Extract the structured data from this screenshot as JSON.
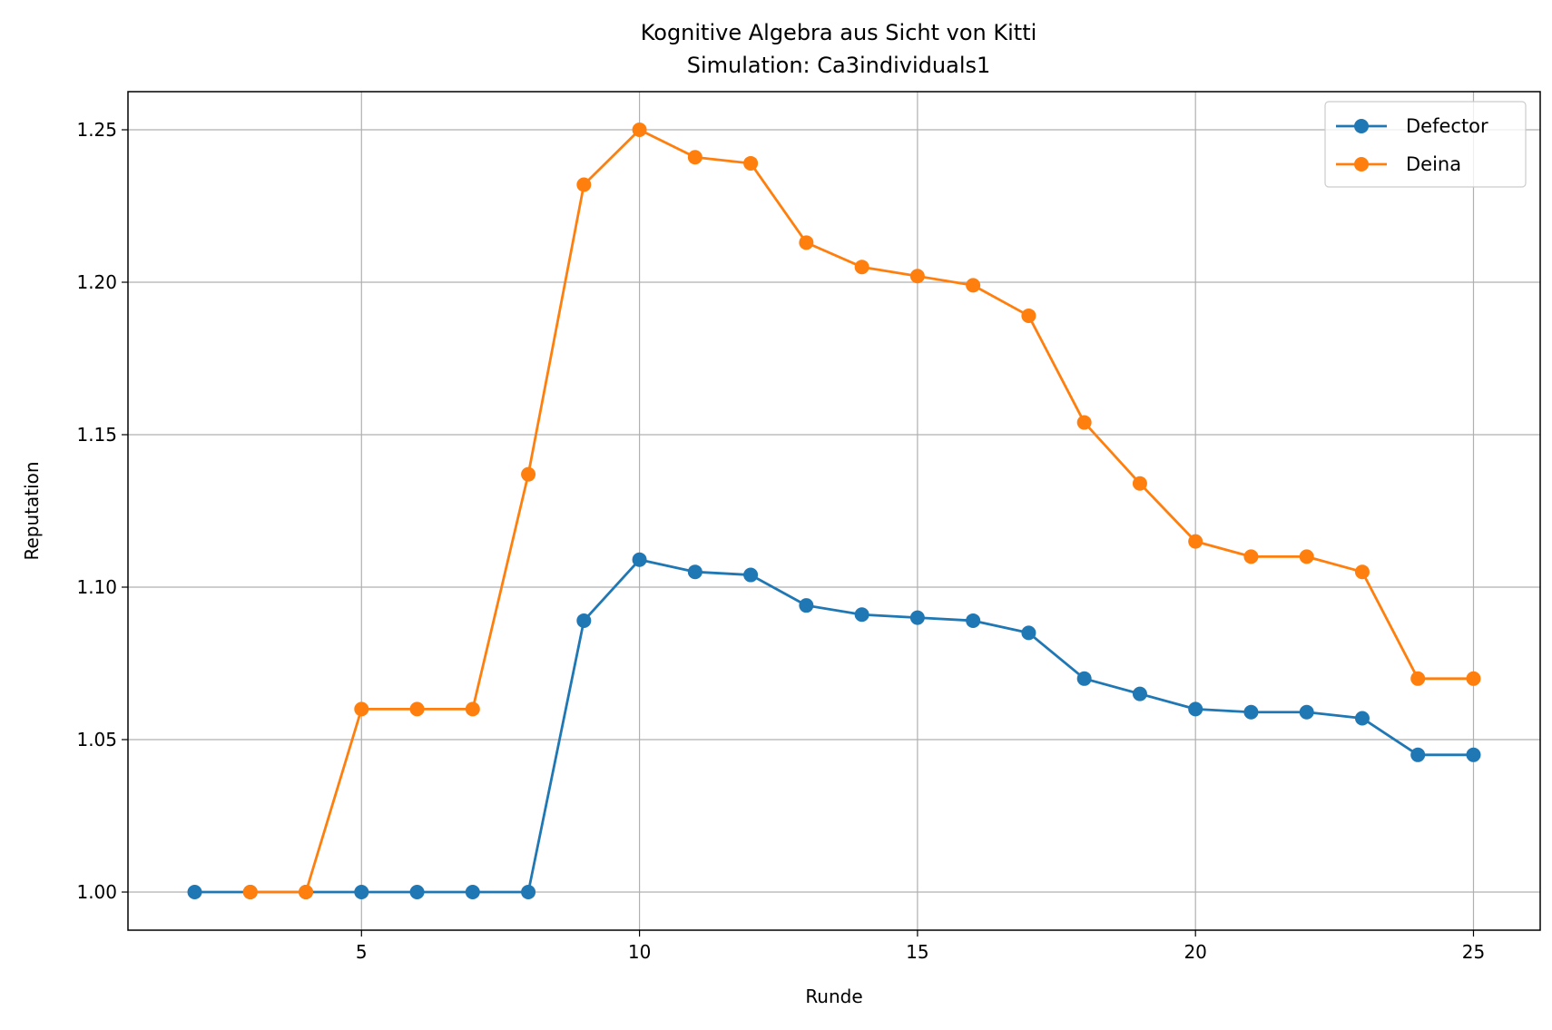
{
  "chart_data": {
    "type": "line",
    "title": "Kognitive Algebra aus Sicht von Kitti",
    "subtitle": "Simulation: Ca3individuals1",
    "xlabel": "Runde",
    "ylabel": "Reputation",
    "xlim": [
      0.8,
      26.2
    ],
    "ylim": [
      0.9875,
      1.2625
    ],
    "xticks": [
      5,
      10,
      15,
      20,
      25
    ],
    "xtick_labels": [
      "5",
      "10",
      "15",
      "20",
      "25"
    ],
    "yticks": [
      1.0,
      1.05,
      1.1,
      1.15,
      1.2,
      1.25
    ],
    "ytick_labels": [
      "1.00",
      "1.05",
      "1.10",
      "1.15",
      "1.20",
      "1.25"
    ],
    "grid": true,
    "legend_position": "top-right",
    "series": [
      {
        "name": "Defector",
        "color": "#1f77b4",
        "x": [
          2,
          3,
          4,
          5,
          6,
          7,
          8,
          9,
          10,
          11,
          12,
          13,
          14,
          15,
          16,
          17,
          18,
          19,
          20,
          21,
          22,
          23,
          24,
          25
        ],
        "y": [
          1.0,
          1.0,
          1.0,
          1.0,
          1.0,
          1.0,
          1.0,
          1.089,
          1.109,
          1.105,
          1.104,
          1.094,
          1.091,
          1.09,
          1.089,
          1.085,
          1.07,
          1.065,
          1.06,
          1.059,
          1.059,
          1.057,
          1.045,
          1.045
        ]
      },
      {
        "name": "Deina",
        "color": "#ff7f0e",
        "x": [
          3,
          4,
          5,
          6,
          7,
          8,
          9,
          10,
          11,
          12,
          13,
          14,
          15,
          16,
          17,
          18,
          19,
          20,
          21,
          22,
          23,
          24,
          25
        ],
        "y": [
          1.0,
          1.0,
          1.06,
          1.06,
          1.06,
          1.137,
          1.232,
          1.25,
          1.241,
          1.239,
          1.213,
          1.205,
          1.202,
          1.199,
          1.189,
          1.154,
          1.134,
          1.115,
          1.11,
          1.11,
          1.105,
          1.07,
          1.07
        ]
      }
    ]
  }
}
